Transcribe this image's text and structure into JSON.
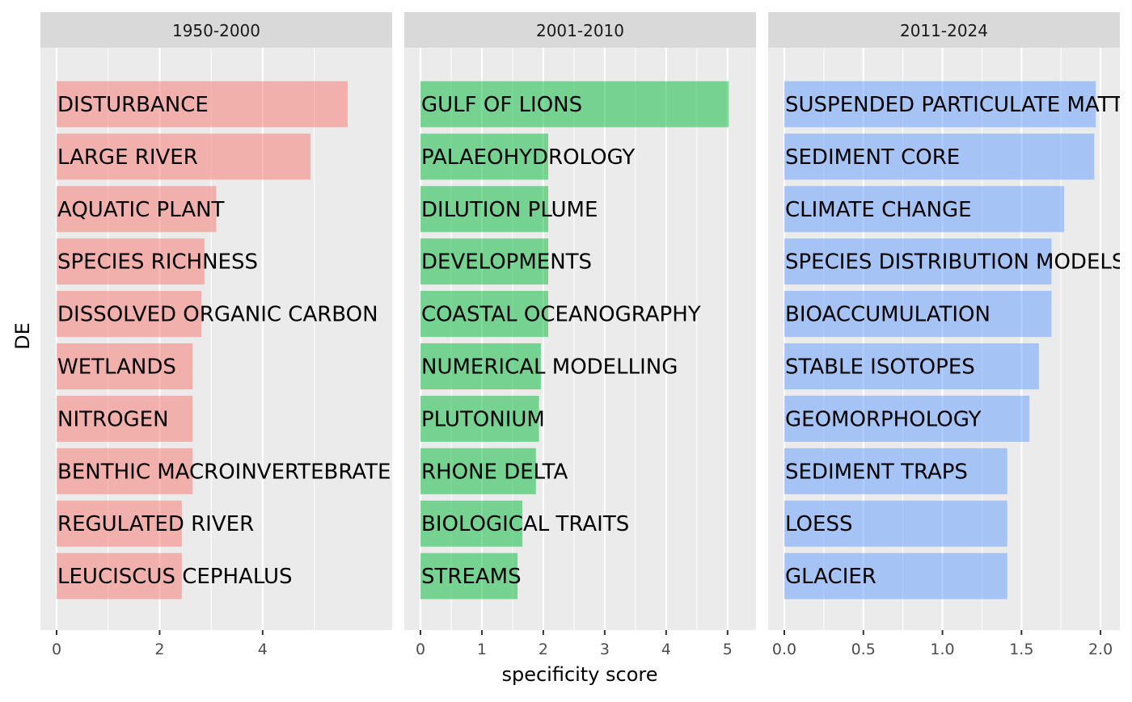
{
  "chart_data": {
    "type": "bar",
    "orientation": "horizontal",
    "ylabel": "DE",
    "xlabel": "specificity score",
    "panels": [
      {
        "strip_label": "1950-2000",
        "color": "#F8766D",
        "xlim": [
          0,
          6.2
        ],
        "ticks": [
          0,
          2,
          4
        ],
        "tick_labels": [
          "0",
          "2",
          "4"
        ],
        "categories": [
          "DISTURBANCE",
          "LARGE RIVER",
          "AQUATIC PLANT",
          "SPECIES RICHNESS",
          "DISSOLVED ORGANIC CARBON",
          "WETLANDS",
          "NITROGEN",
          "BENTHIC MACROINVERTEBRATES",
          "REGULATED RIVER",
          "LEUCISCUS CEPHALUS"
        ],
        "values": [
          5.65,
          4.93,
          3.1,
          2.87,
          2.81,
          2.64,
          2.64,
          2.64,
          2.43,
          2.43
        ]
      },
      {
        "strip_label": "2001-2010",
        "color": "#00BA38",
        "xlim": [
          0,
          5.2
        ],
        "ticks": [
          0,
          1,
          2,
          3,
          4,
          5
        ],
        "tick_labels": [
          "0",
          "1",
          "2",
          "3",
          "4",
          "5"
        ],
        "categories": [
          "GULF OF LIONS",
          "PALAEOHYDROLOGY",
          "DILUTION PLUME",
          "DEVELOPMENTS",
          "COASTAL OCEANOGRAPHY",
          "NUMERICAL MODELLING",
          "PLUTONIUM",
          "RHONE DELTA",
          "BIOLOGICAL TRAITS",
          "STREAMS"
        ],
        "values": [
          5.02,
          2.08,
          2.08,
          2.08,
          2.08,
          1.96,
          1.93,
          1.88,
          1.66,
          1.58
        ]
      },
      {
        "strip_label": "2011-2024",
        "color": "#619CFF",
        "xlim": [
          0,
          2.02
        ],
        "ticks": [
          0,
          0.5,
          1,
          1.5,
          2
        ],
        "tick_labels": [
          "0.0",
          "0.5",
          "1.0",
          "1.5",
          "2.0"
        ],
        "categories": [
          "SUSPENDED PARTICULATE MATTER",
          "SEDIMENT CORE",
          "CLIMATE CHANGE",
          "SPECIES DISTRIBUTION MODELS",
          "BIOACCUMULATION",
          "STABLE ISOTOPES",
          "GEOMORPHOLOGY",
          "SEDIMENT TRAPS",
          "LOESS",
          "GLACIER"
        ],
        "values": [
          1.97,
          1.96,
          1.77,
          1.69,
          1.69,
          1.61,
          1.55,
          1.41,
          1.41,
          1.41
        ]
      }
    ]
  }
}
